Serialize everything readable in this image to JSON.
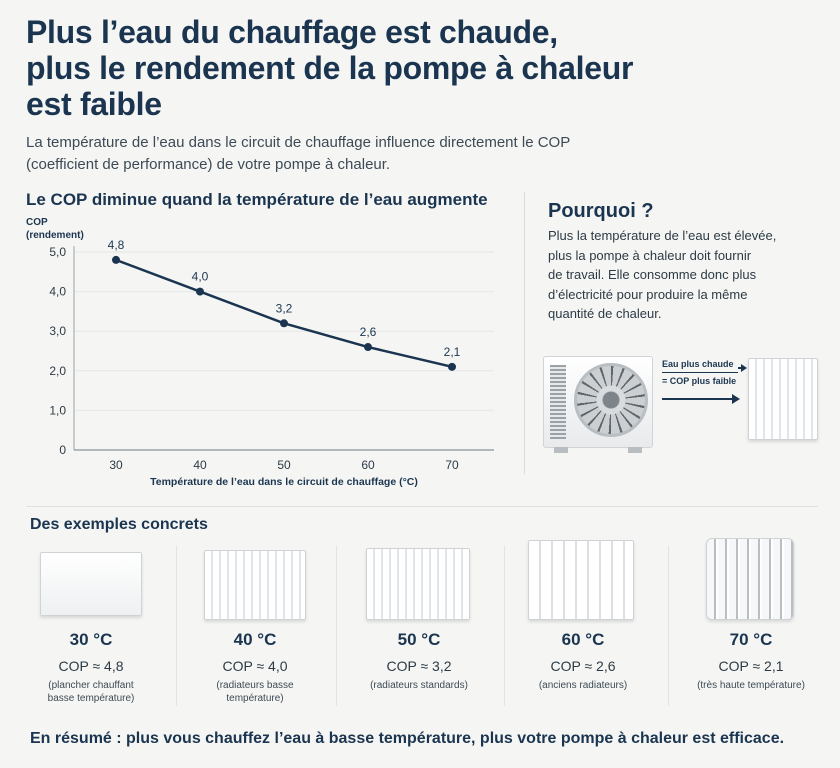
{
  "title": {
    "line1": "Plus l’eau du chauffage est chaude,",
    "line2": "plus le rendement de la pompe à chaleur",
    "line3": "est faible"
  },
  "intro": {
    "line1": "La température de l’eau dans le circuit de chauffage influence directement le COP",
    "line2": "(coefficient de performance) de votre pompe à chaleur."
  },
  "chart_data": {
    "type": "line",
    "title": "Le COP diminue quand la température de l’eau augmente",
    "ylabel_line1": "COP",
    "ylabel_line2": "(rendement)",
    "xlabel": "Température de l’eau dans le circuit de chauffage (°C)",
    "x": [
      30,
      40,
      50,
      60,
      70
    ],
    "y": [
      4.8,
      4.0,
      3.2,
      2.6,
      2.1
    ],
    "point_labels": [
      "4,8",
      "4,0",
      "3,2",
      "2,6",
      "2,1"
    ],
    "xlim": [
      25,
      75
    ],
    "ylim": [
      0,
      5.0
    ],
    "x_ticks": [
      "30",
      "40",
      "50",
      "60",
      "70"
    ],
    "y_ticks": [
      "0",
      "1,0",
      "2,0",
      "3,0",
      "4,0",
      "5,0"
    ],
    "y_tick_values": [
      0,
      1,
      2,
      3,
      4,
      5
    ],
    "grid": "horizontal",
    "line_color": "#1b3550"
  },
  "why": {
    "title": "Pourquoi ?",
    "lines": [
      "Plus la température de l’eau est élevée,",
      "plus la pompe à chaleur doit fournir",
      "de travail. Elle consomme donc plus",
      "d’électricité pour produire la même",
      "quantité de chaleur."
    ],
    "arrow_line1": "Eau plus chaude",
    "arrow_line2": "= COP plus faible"
  },
  "examples": {
    "title": "Des exemples concrets",
    "items": [
      {
        "temp": "30 °C",
        "cop": "COP ≈ 4,8",
        "note1": "(plancher chauffant",
        "note2": "basse température)"
      },
      {
        "temp": "40 °C",
        "cop": "COP ≈ 4,0",
        "note1": "(radiateurs basse",
        "note2": "température)"
      },
      {
        "temp": "50 °C",
        "cop": "COP ≈ 3,2",
        "note1": "(radiateurs standards)",
        "note2": ""
      },
      {
        "temp": "60 °C",
        "cop": "COP ≈ 2,6",
        "note1": "(anciens radiateurs)",
        "note2": ""
      },
      {
        "temp": "70 °C",
        "cop": "COP ≈ 2,1",
        "note1": "(très haute température)",
        "note2": ""
      }
    ]
  },
  "summary": "En résumé : plus vous chauffez l’eau à basse température, plus votre pompe à chaleur est efficace.",
  "colors": {
    "primary": "#1b3550",
    "background": "#f5f6f4"
  }
}
